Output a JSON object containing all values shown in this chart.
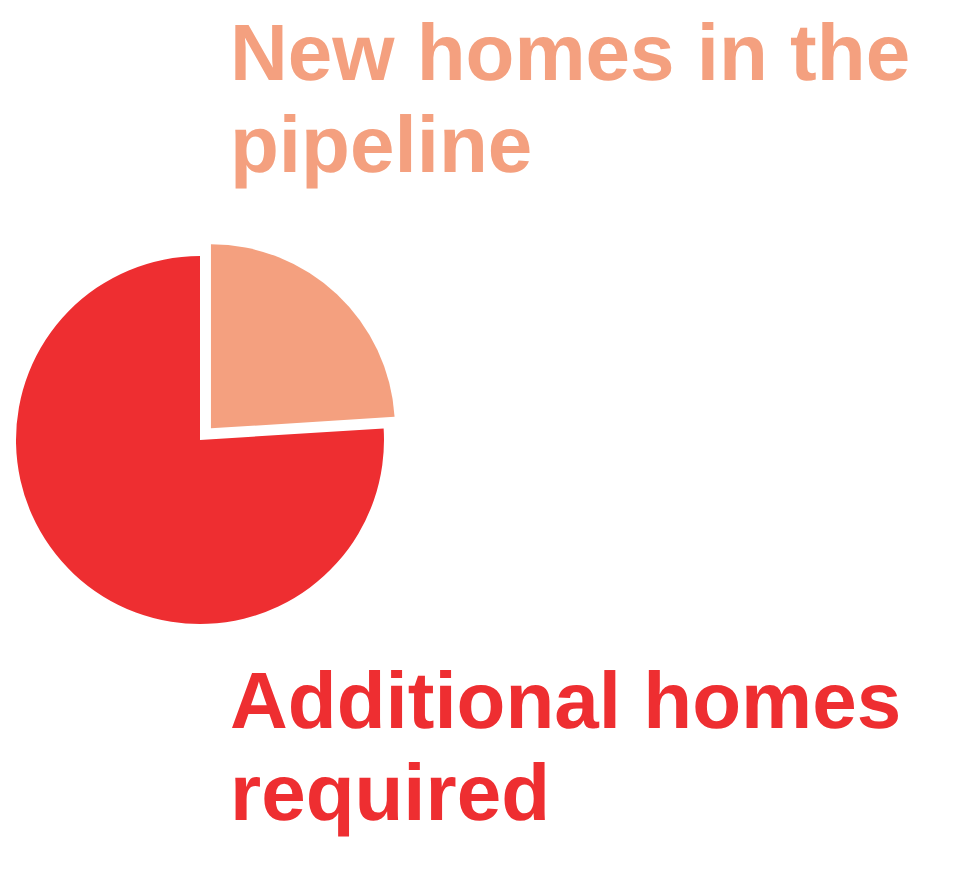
{
  "chart_data": {
    "type": "pie",
    "categories": [
      "New homes in the pipeline",
      "Additional homes required"
    ],
    "values": [
      24,
      76
    ],
    "colors": [
      "#f4a07f",
      "#ee2e31"
    ]
  }
}
